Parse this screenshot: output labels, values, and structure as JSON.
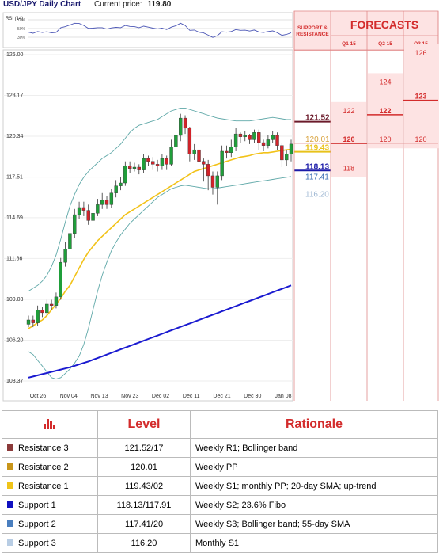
{
  "header": {
    "pair_title": "USD/JPY Daily Chart",
    "price_label": "Current price:",
    "price_value": "119.80"
  },
  "rsi": {
    "label": "RSI (14)",
    "ticks": [
      "70%",
      "50%",
      "30%"
    ]
  },
  "chart_data": {
    "type": "candlestick",
    "y_ticks": [
      "126.00",
      "123.17",
      "120.34",
      "117.51",
      "114.69",
      "111.86",
      "109.03",
      "106.20",
      "103.37"
    ],
    "ylim": [
      103.37,
      126.0
    ],
    "x_ticks": [
      "Oct 26",
      "Nov 04",
      "Nov 13",
      "Nov 23",
      "Dec 02",
      "Dec 11",
      "Dec 21",
      "Dec 30",
      "Jan 08"
    ],
    "candles": [
      [
        107.3,
        107.6,
        107.1,
        107.9
      ],
      [
        107.6,
        107.4,
        107.1,
        107.9
      ],
      [
        107.4,
        108.3,
        107.2,
        108.6
      ],
      [
        108.3,
        108.1,
        107.8,
        108.5
      ],
      [
        108.1,
        108.7,
        107.9,
        109.0
      ],
      [
        108.7,
        108.6,
        108.3,
        109.0
      ],
      [
        108.6,
        109.2,
        108.4,
        109.5
      ],
      [
        109.2,
        111.6,
        109.0,
        111.9
      ],
      [
        111.6,
        112.5,
        111.3,
        113.0
      ],
      [
        112.5,
        113.6,
        112.1,
        114.0
      ],
      [
        113.6,
        114.9,
        113.3,
        115.3
      ],
      [
        114.9,
        115.4,
        114.6,
        115.8
      ],
      [
        115.4,
        115.2,
        114.8,
        115.8
      ],
      [
        115.2,
        114.5,
        114.2,
        115.6
      ],
      [
        114.5,
        115.0,
        114.2,
        115.4
      ],
      [
        115.0,
        115.6,
        114.8,
        116.0
      ],
      [
        115.6,
        115.9,
        115.3,
        116.4
      ],
      [
        115.9,
        115.6,
        115.3,
        116.2
      ],
      [
        115.6,
        116.4,
        115.4,
        116.7
      ],
      [
        116.4,
        116.9,
        116.1,
        117.3
      ],
      [
        116.9,
        117.1,
        116.6,
        117.5
      ],
      [
        117.1,
        118.3,
        116.9,
        118.6
      ],
      [
        118.3,
        118.1,
        117.8,
        118.6
      ],
      [
        118.1,
        118.2,
        117.9,
        118.5
      ],
      [
        118.2,
        118.0,
        117.7,
        118.4
      ],
      [
        118.0,
        118.8,
        117.8,
        119.1
      ],
      [
        118.8,
        118.6,
        118.3,
        119.0
      ],
      [
        118.6,
        118.4,
        118.0,
        118.9
      ],
      [
        118.4,
        118.3,
        117.9,
        118.7
      ],
      [
        118.3,
        118.8,
        118.0,
        119.1
      ],
      [
        118.8,
        118.4,
        118.0,
        119.0
      ],
      [
        118.4,
        119.6,
        118.3,
        120.1
      ],
      [
        119.6,
        120.4,
        119.1,
        120.8
      ],
      [
        120.4,
        121.6,
        120.0,
        121.9
      ],
      [
        121.6,
        120.9,
        120.5,
        121.8
      ],
      [
        120.9,
        119.1,
        118.6,
        121.0
      ],
      [
        119.1,
        119.4,
        118.7,
        119.8
      ],
      [
        119.4,
        118.6,
        118.2,
        119.6
      ],
      [
        118.6,
        118.4,
        117.2,
        118.8
      ],
      [
        118.4,
        117.6,
        116.6,
        118.7
      ],
      [
        117.6,
        116.8,
        116.3,
        117.9
      ],
      [
        116.8,
        117.6,
        115.6,
        117.9
      ],
      [
        117.6,
        119.3,
        117.3,
        119.7
      ],
      [
        119.3,
        119.2,
        118.8,
        119.7
      ],
      [
        119.2,
        119.6,
        118.9,
        120.1
      ],
      [
        119.6,
        120.5,
        119.3,
        120.9
      ],
      [
        120.5,
        120.3,
        119.9,
        120.6
      ],
      [
        120.3,
        120.4,
        120.0,
        120.7
      ],
      [
        120.4,
        120.1,
        119.8,
        120.5
      ],
      [
        120.1,
        120.6,
        119.9,
        120.8
      ],
      [
        120.6,
        119.9,
        119.4,
        120.8
      ],
      [
        119.9,
        119.7,
        119.3,
        120.1
      ],
      [
        119.7,
        120.1,
        119.5,
        120.4
      ],
      [
        120.1,
        120.4,
        119.9,
        120.7
      ],
      [
        120.4,
        119.7,
        119.4,
        120.6
      ],
      [
        119.7,
        118.7,
        118.2,
        119.9
      ],
      [
        118.7,
        119.1,
        118.3,
        119.4
      ],
      [
        119.1,
        119.8,
        118.6,
        120.1
      ]
    ],
    "sma20": [
      107.0,
      107.2,
      107.4,
      107.6,
      107.9,
      108.3,
      108.7,
      109.1,
      109.6,
      110.0,
      110.6,
      111.2,
      111.8,
      112.3,
      112.7,
      113.1,
      113.4,
      113.7,
      114.0,
      114.3,
      114.6,
      114.9,
      115.1,
      115.3,
      115.5,
      115.7,
      115.9,
      116.1,
      116.3,
      116.5,
      116.7,
      116.9,
      117.1,
      117.3,
      117.5,
      117.7,
      117.9,
      118.0,
      118.1,
      118.2,
      118.3,
      118.4,
      118.5,
      118.6,
      118.7,
      118.8,
      118.9,
      118.95,
      119.0,
      119.1,
      119.15,
      119.2,
      119.2,
      119.25,
      119.3,
      119.35,
      119.4,
      119.43
    ],
    "sma55": [
      103.6,
      103.68,
      103.76,
      103.84,
      103.92,
      104.0,
      104.08,
      104.16,
      104.24,
      104.32,
      104.42,
      104.52,
      104.62,
      104.72,
      104.84,
      104.96,
      105.08,
      105.2,
      105.32,
      105.44,
      105.56,
      105.68,
      105.8,
      105.92,
      106.04,
      106.16,
      106.28,
      106.4,
      106.52,
      106.64,
      106.76,
      106.88,
      107.0,
      107.12,
      107.24,
      107.36,
      107.48,
      107.6,
      107.72,
      107.84,
      107.96,
      108.08,
      108.2,
      108.32,
      108.44,
      108.56,
      108.68,
      108.8,
      108.92,
      109.04,
      109.16,
      109.28,
      109.4,
      109.52,
      109.64,
      109.76,
      109.88,
      110.0
    ],
    "bb_upper": [
      109.6,
      109.8,
      110.0,
      110.3,
      110.7,
      111.3,
      112.1,
      113.2,
      114.4,
      115.5,
      116.3,
      117.0,
      117.5,
      117.9,
      118.2,
      118.5,
      118.8,
      119.0,
      119.2,
      119.5,
      119.8,
      120.2,
      120.6,
      120.9,
      121.1,
      121.2,
      121.3,
      121.4,
      121.5,
      121.7,
      121.9,
      122.1,
      122.2,
      122.3,
      122.3,
      122.2,
      122.1,
      122.0,
      121.9,
      121.8,
      121.7,
      121.6,
      121.55,
      121.5,
      121.45,
      121.4,
      121.4,
      121.4,
      121.4,
      121.45,
      121.5,
      121.55,
      121.6,
      121.65,
      121.6,
      121.55,
      121.5,
      121.5
    ],
    "bb_lower": [
      105.4,
      105.2,
      104.8,
      104.4,
      104.0,
      103.6,
      103.5,
      103.6,
      103.9,
      104.2,
      104.6,
      105.1,
      105.9,
      107.0,
      108.3,
      109.6,
      110.7,
      111.6,
      112.4,
      113.0,
      113.5,
      113.9,
      114.3,
      114.6,
      114.9,
      115.2,
      115.5,
      115.8,
      116.1,
      116.3,
      116.5,
      116.7,
      116.8,
      116.9,
      116.95,
      116.9,
      116.85,
      116.8,
      116.75,
      116.7,
      116.7,
      116.75,
      116.8,
      116.85,
      116.9,
      116.95,
      117.0,
      117.05,
      117.1,
      117.15,
      117.2,
      117.25,
      117.3,
      117.35,
      117.4,
      117.45,
      117.5,
      117.55
    ]
  },
  "levels_axis": [
    {
      "label": "121.52",
      "value": 121.52,
      "color": "#6b1a2a",
      "underline": true
    },
    {
      "label": "120.01",
      "value": 120.01,
      "color": "#d9a441",
      "underline": false
    },
    {
      "label": "119.43",
      "value": 119.43,
      "color": "#e8c21a",
      "underline": true
    },
    {
      "label": "118.13",
      "value": 118.13,
      "color": "#1a1aa8",
      "underline": true
    },
    {
      "label": "117.41",
      "value": 117.41,
      "color": "#3a6fb5",
      "underline": false
    },
    {
      "label": "116.20",
      "value": 116.2,
      "color": "#9fb8d3",
      "underline": false
    }
  ],
  "forecast": {
    "sr_header": "SUPPORT & RESISTANCE",
    "title": "FORECASTS",
    "columns": [
      {
        "label": "Q1 15",
        "high": "122",
        "mid": "120",
        "low": "118",
        "high_v": 122,
        "mid_v": 120,
        "low_v": 118
      },
      {
        "label": "Q2 15",
        "high": "124",
        "mid": "122",
        "low": "120",
        "high_v": 124,
        "mid_v": 122,
        "low_v": 120
      },
      {
        "label": "Q3 15",
        "high": "126",
        "mid": "123",
        "low": "120",
        "high_v": 126,
        "mid_v": 123,
        "low_v": 120
      }
    ]
  },
  "table": {
    "headers": [
      "Level",
      "Rationale"
    ],
    "rows": [
      {
        "name": "Resistance 3",
        "color": "#8b3a3a",
        "level": "121.52/17",
        "rationale": "Weekly R1; Bollinger band"
      },
      {
        "name": "Resistance 2",
        "color": "#c8951a",
        "level": "120.01",
        "rationale": "Weekly PP"
      },
      {
        "name": "Resistance 1",
        "color": "#f0c419",
        "level": "119.43/02",
        "rationale": "Weekly S1; monthly PP; 20-day SMA; up-trend"
      },
      {
        "name": "Support 1",
        "color": "#1010c0",
        "level": "118.13/117.91",
        "rationale": "Weekly S2; 23.6% Fibo"
      },
      {
        "name": "Support 2",
        "color": "#4a7fbf",
        "level": "117.41/20",
        "rationale": "Weekly S3; Bollinger band; 55-day SMA"
      },
      {
        "name": "Support 3",
        "color": "#b8cde4",
        "level": "116.20",
        "rationale": "Monthly S1"
      }
    ]
  }
}
